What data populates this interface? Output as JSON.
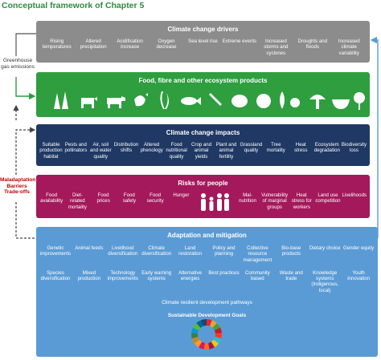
{
  "title": "Conceptual framework of Chapter 5",
  "ghg_label": "Greenhouse gas emissions",
  "side_labels": [
    "Maladaptation",
    "Barriers",
    "Trade-offs"
  ],
  "boxes": [
    {
      "header": "Climate change drivers",
      "items": [
        "Rising temperatures",
        "Altered precipitation",
        "Acidification increase",
        "Oxygen decrease",
        "Sea level rise",
        "Extreme events",
        "Increased storms and cyclones",
        "Droughts and floods",
        "Increased climate variability"
      ]
    },
    {
      "header": "Food, fibre and other ecosystem products",
      "items": []
    },
    {
      "header": "Climate change impacts",
      "items": [
        "Suitable production habitat",
        "Pests and pollinators",
        "Air, soil and water quality",
        "Distribution shifts",
        "Altered phenology",
        "Food nutritional quality",
        "Crop and animal yields",
        "Plant and animal fertility",
        "Grassland quality",
        "Tree mortality",
        "Heat stress",
        "Ecosystem degradation",
        "Biodiversity loss"
      ]
    },
    {
      "header": "Risks for people",
      "items": [
        "Food availability",
        "Diet-related mortality",
        "Food prices",
        "Food safety",
        "Food security",
        "Hunger",
        "Mal-nutrition",
        "Vulnerability of marginal groups",
        "Heat stress for workers",
        "Land use competition",
        "Livelihoods"
      ]
    }
  ],
  "adaptation": {
    "header": "Adaptation and mitigation",
    "rows": [
      [
        "Genetic improvements",
        "Animal feeds",
        "Livelihood diversification",
        "Climate diversification",
        "Land restoration",
        "Policy and planning",
        "Collective resource management",
        "Bio-base products",
        "Dietary choice",
        "Gender equity"
      ],
      [
        "Species diversification",
        "Mixed production",
        "Technology improvements",
        "Early warning systems",
        "Alternative energies",
        "Best practices",
        "Community based",
        "Waste and trade",
        "Knowledge systems (Indigenous, local)",
        "Youth innovation"
      ]
    ],
    "pathways": "Climate resilient development pathways",
    "sdg_title": "Sustainable Development Goals"
  }
}
